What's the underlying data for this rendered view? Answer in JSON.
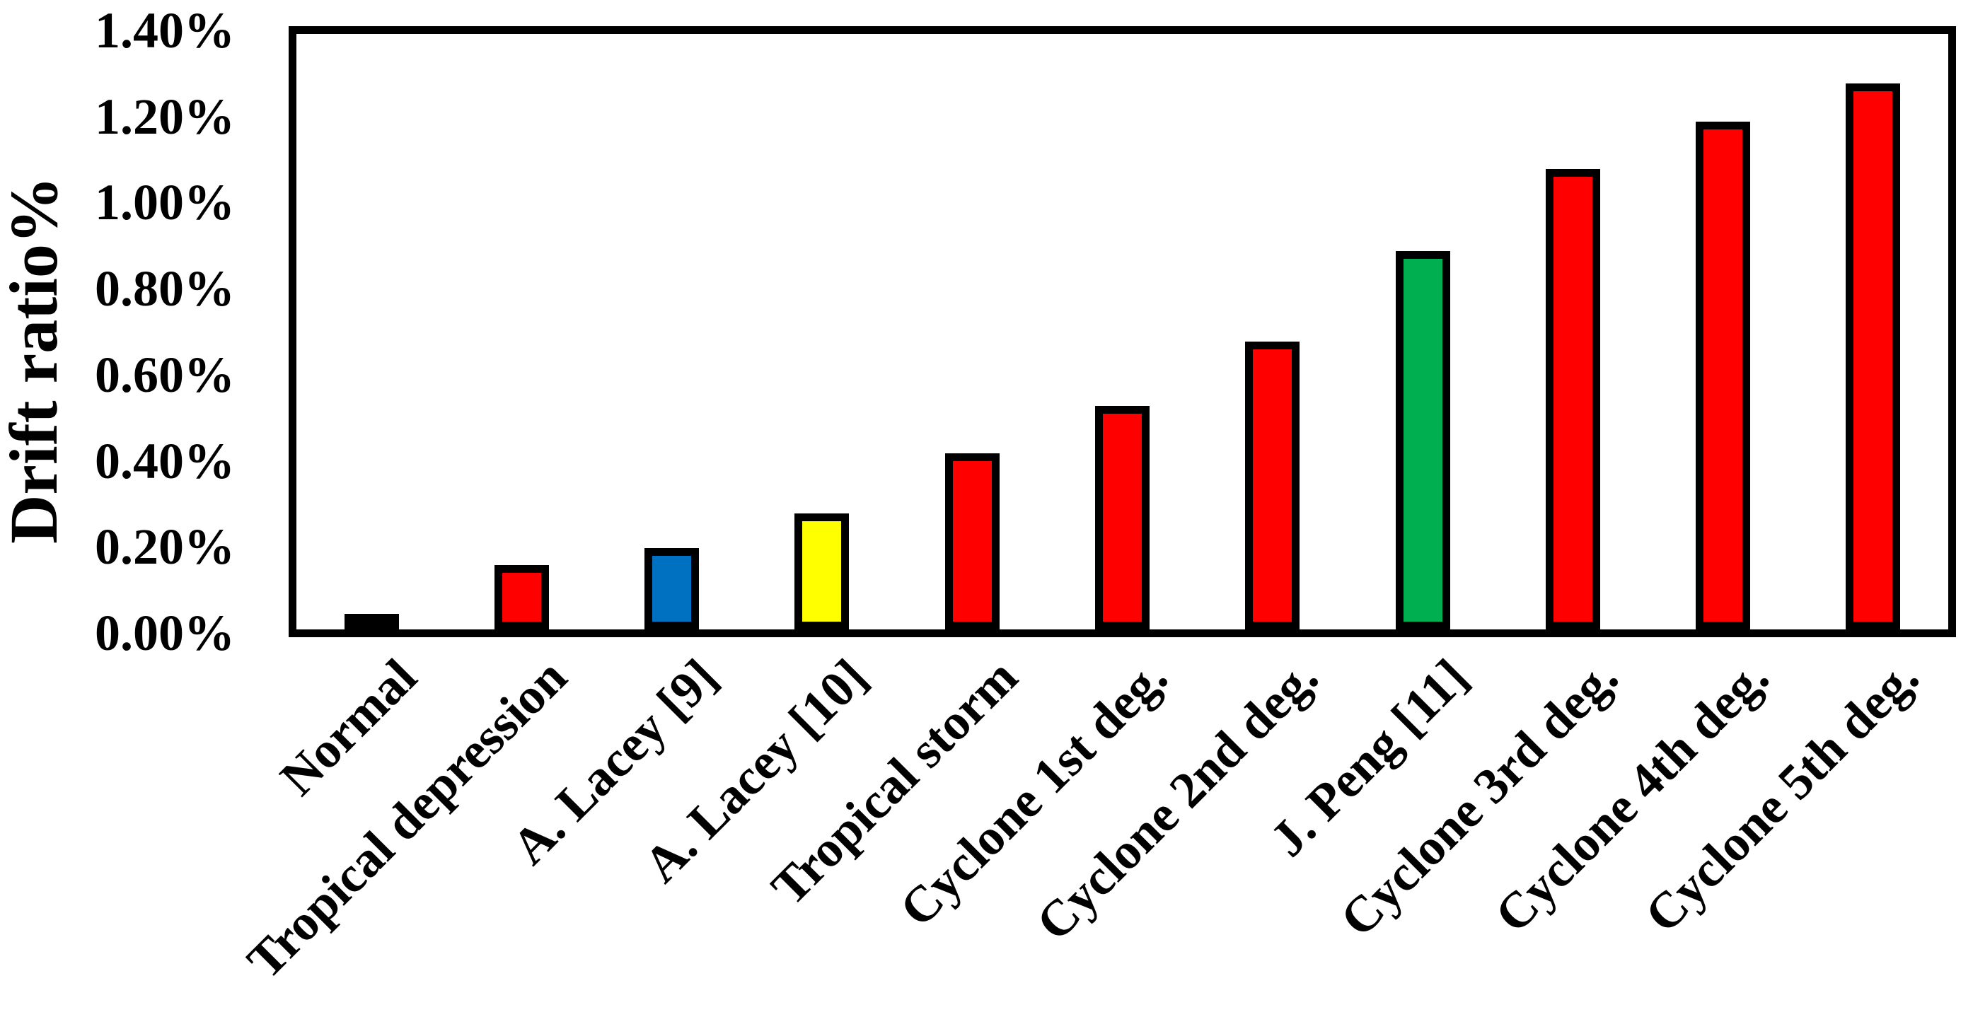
{
  "chart_data": {
    "type": "bar",
    "title": "",
    "xlabel": "",
    "ylabel": "Drift ratio%",
    "categories": [
      "Normal",
      "Tropical depression",
      "A. Lacey [9]",
      "A. Lacey [10]",
      "Tropical storm",
      "Cyclone 1st deg.",
      "Cyclone 2nd deg.",
      "J. Peng [11]",
      "Cyclone 3rd deg.",
      "Cyclone 4th deg.",
      "Cyclone 5th deg."
    ],
    "values": [
      0.02,
      0.14,
      0.18,
      0.26,
      0.4,
      0.51,
      0.66,
      0.87,
      1.06,
      1.17,
      1.26
    ],
    "value_unit": "%",
    "bar_colors": [
      "#000000",
      "#FF0000",
      "#0070C0",
      "#FFFF00",
      "#FF0000",
      "#FF0000",
      "#FF0000",
      "#00B050",
      "#FF0000",
      "#FF0000",
      "#FF0000"
    ],
    "bar_outline_color": "#000000",
    "ylim": [
      0,
      1.4
    ],
    "ytick_step": 0.2,
    "ytick_labels": [
      "0.00%",
      "0.20%",
      "0.40%",
      "0.60%",
      "0.80%",
      "1.00%",
      "1.20%",
      "1.40%"
    ],
    "grid": false,
    "legend": null,
    "frame_color": "#000000",
    "background_color": "#FFFFFF"
  }
}
